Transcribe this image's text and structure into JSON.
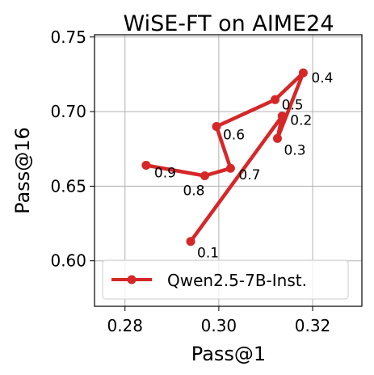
{
  "chart_data": {
    "type": "line",
    "title": "WiSE-FT on AIME24",
    "xlabel": "Pass@1",
    "ylabel": "Pass@16",
    "xlim": [
      0.2735,
      0.3305
    ],
    "ylim": [
      0.5695,
      0.7515
    ],
    "xticks": [
      0.28,
      0.3,
      0.32
    ],
    "xtick_labels": [
      "0.28",
      "0.30",
      "0.32"
    ],
    "yticks": [
      0.6,
      0.65,
      0.7,
      0.75
    ],
    "ytick_labels": [
      "0.60",
      "0.65",
      "0.70",
      "0.75"
    ],
    "grid": true,
    "legend_position": "lower-center",
    "series": [
      {
        "name": "Qwen2.5-7B-Inst.",
        "color": "#d62728",
        "marker": "circle",
        "points": [
          {
            "label": "0.1",
            "x": 0.294,
            "y": 0.613
          },
          {
            "label": "0.2",
            "x": 0.3135,
            "y": 0.697
          },
          {
            "label": "0.3",
            "x": 0.3125,
            "y": 0.682
          },
          {
            "label": "0.4",
            "x": 0.318,
            "y": 0.726
          },
          {
            "label": "0.5",
            "x": 0.312,
            "y": 0.708
          },
          {
            "label": "0.6",
            "x": 0.2995,
            "y": 0.69
          },
          {
            "label": "0.7",
            "x": 0.3025,
            "y": 0.662
          },
          {
            "label": "0.8",
            "x": 0.297,
            "y": 0.657
          },
          {
            "label": "0.9",
            "x": 0.2845,
            "y": 0.664
          }
        ]
      }
    ]
  }
}
